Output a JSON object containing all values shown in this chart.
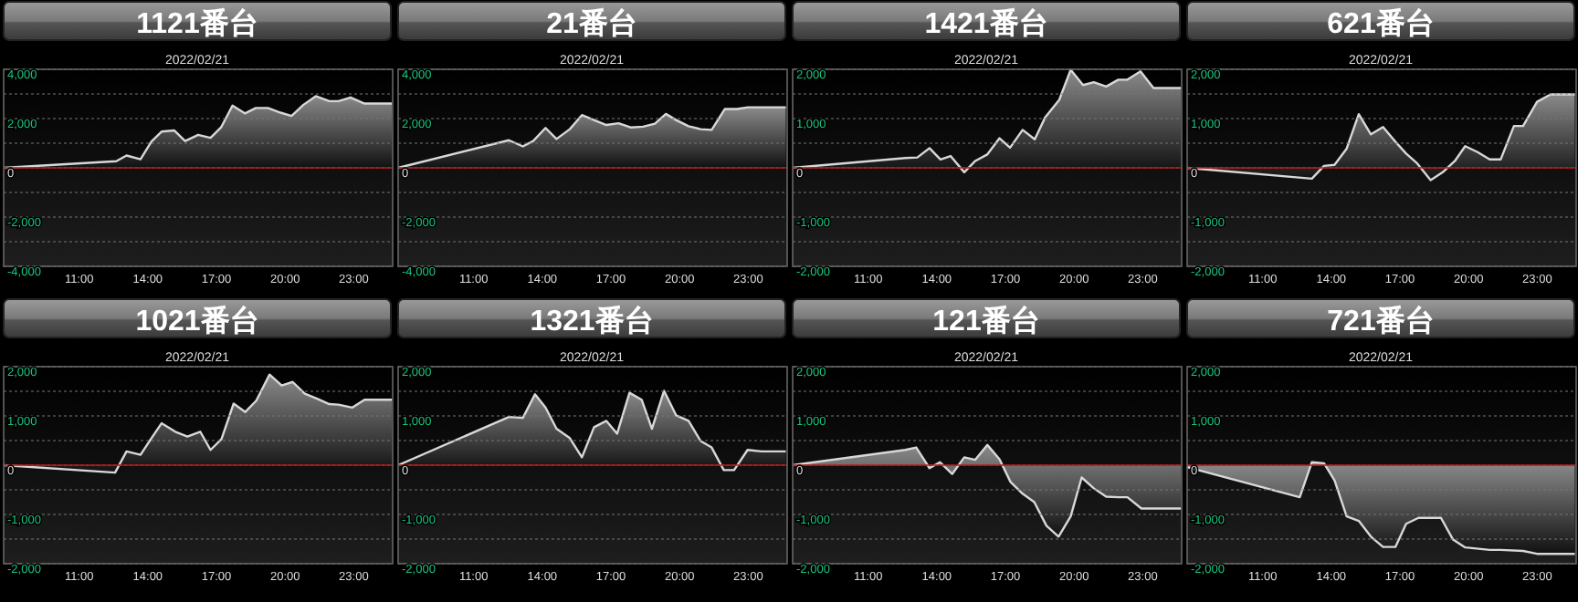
{
  "chart_data": [
    {
      "type": "area",
      "title": "1121番台",
      "subtitle": "2022/02/21",
      "color": "#d8d8d8",
      "grid": "y",
      "xlim": [
        7.7,
        24.7
      ],
      "ylim": [
        -4000,
        4000
      ],
      "xticks": [
        {
          "value": 11,
          "label": "11:00"
        },
        {
          "value": 14,
          "label": "14:00"
        },
        {
          "value": 17,
          "label": "17:00"
        },
        {
          "value": 20,
          "label": "20:00"
        },
        {
          "value": 23,
          "label": "23:00"
        }
      ],
      "yticks": [
        {
          "value": -4000,
          "label": "-4,000"
        },
        {
          "value": -3000,
          "label": null
        },
        {
          "value": -2000,
          "label": "-2,000"
        },
        {
          "value": -1000,
          "label": null
        },
        {
          "value": 0,
          "label": "0"
        },
        {
          "value": 1000,
          "label": null
        },
        {
          "value": 2000,
          "label": "2,000"
        },
        {
          "value": 3000,
          "label": null
        },
        {
          "value": 4000,
          "label": "4,000"
        }
      ],
      "ref_lines": [
        {
          "axis": "y",
          "value": 0,
          "color": "#c01818"
        }
      ],
      "x": [
        7.7,
        12.62,
        13.07,
        13.68,
        14.16,
        14.6,
        15.15,
        15.63,
        16.2,
        16.74,
        17.2,
        17.7,
        18.24,
        18.72,
        19.25,
        19.8,
        20.28,
        20.8,
        21.34,
        21.93,
        22.33,
        22.86,
        23.47,
        24.67
      ],
      "values": [
        0,
        270,
        500,
        350,
        1070,
        1470,
        1520,
        1090,
        1340,
        1220,
        1640,
        2530,
        2210,
        2430,
        2430,
        2240,
        2110,
        2560,
        2910,
        2710,
        2710,
        2860,
        2610,
        2610
      ]
    },
    {
      "type": "area",
      "title": "21番台",
      "subtitle": "2022/02/21",
      "color": "#d8d8d8",
      "grid": "y",
      "xlim": [
        7.7,
        24.7
      ],
      "ylim": [
        -4000,
        4000
      ],
      "xticks": [
        {
          "value": 11,
          "label": "11:00"
        },
        {
          "value": 14,
          "label": "14:00"
        },
        {
          "value": 17,
          "label": "17:00"
        },
        {
          "value": 20,
          "label": "20:00"
        },
        {
          "value": 23,
          "label": "23:00"
        }
      ],
      "yticks": [
        {
          "value": -4000,
          "label": "-4,000"
        },
        {
          "value": -3000,
          "label": null
        },
        {
          "value": -2000,
          "label": "-2,000"
        },
        {
          "value": -1000,
          "label": null
        },
        {
          "value": 0,
          "label": "0"
        },
        {
          "value": 1000,
          "label": null
        },
        {
          "value": 2000,
          "label": "2,000"
        },
        {
          "value": 3000,
          "label": null
        },
        {
          "value": 4000,
          "label": "4,000"
        }
      ],
      "ref_lines": [
        {
          "axis": "y",
          "value": 0,
          "color": "#c01818"
        }
      ],
      "x": [
        7.7,
        12.54,
        13.15,
        13.6,
        14.14,
        14.62,
        15.2,
        15.73,
        16.26,
        16.8,
        17.33,
        17.86,
        18.4,
        18.92,
        19.4,
        19.85,
        20.39,
        20.92,
        21.4,
        21.98,
        22.51,
        22.99,
        24.64
      ],
      "values": [
        0,
        1120,
        870,
        1090,
        1620,
        1170,
        1570,
        2140,
        1940,
        1740,
        1810,
        1640,
        1670,
        1790,
        2190,
        1940,
        1690,
        1570,
        1540,
        2390,
        2390,
        2460,
        2460
      ]
    },
    {
      "type": "area",
      "title": "1421番台",
      "subtitle": "2022/02/21",
      "color": "#d8d8d8",
      "grid": "y",
      "xlim": [
        7.7,
        24.7
      ],
      "ylim": [
        -2000,
        2000
      ],
      "xticks": [
        {
          "value": 11,
          "label": "11:00"
        },
        {
          "value": 14,
          "label": "14:00"
        },
        {
          "value": 17,
          "label": "17:00"
        },
        {
          "value": 20,
          "label": "20:00"
        },
        {
          "value": 23,
          "label": "23:00"
        }
      ],
      "yticks": [
        {
          "value": -2000,
          "label": "-2,000"
        },
        {
          "value": -1500,
          "label": null
        },
        {
          "value": -1000,
          "label": "-1,000"
        },
        {
          "value": -500,
          "label": null
        },
        {
          "value": 0,
          "label": "0"
        },
        {
          "value": 500,
          "label": null
        },
        {
          "value": 1000,
          "label": "1,000"
        },
        {
          "value": 1500,
          "label": null
        },
        {
          "value": 2000,
          "label": "2,000"
        }
      ],
      "ref_lines": [
        {
          "axis": "y",
          "value": 0,
          "color": "#c01818"
        }
      ],
      "x": [
        7.7,
        12.62,
        13.15,
        13.68,
        14.16,
        14.6,
        15.2,
        15.68,
        16.2,
        16.74,
        17.2,
        17.75,
        18.28,
        18.74,
        19.35,
        19.85,
        20.39,
        20.86,
        21.4,
        21.93,
        22.33,
        22.9,
        23.47,
        24.67
      ],
      "values": [
        0,
        200,
        210,
        400,
        170,
        240,
        -90,
        140,
        270,
        600,
        410,
        770,
        580,
        1030,
        1380,
        1990,
        1680,
        1740,
        1650,
        1790,
        1790,
        1960,
        1620,
        1620
      ]
    },
    {
      "type": "area",
      "title": "621番台",
      "subtitle": "2022/02/21",
      "color": "#d8d8d8",
      "grid": "y",
      "xlim": [
        7.7,
        24.7
      ],
      "ylim": [
        -2000,
        2000
      ],
      "xticks": [
        {
          "value": 11,
          "label": "11:00"
        },
        {
          "value": 14,
          "label": "14:00"
        },
        {
          "value": 17,
          "label": "17:00"
        },
        {
          "value": 20,
          "label": "20:00"
        },
        {
          "value": 23,
          "label": "23:00"
        }
      ],
      "yticks": [
        {
          "value": -2000,
          "label": "-2,000"
        },
        {
          "value": -1500,
          "label": null
        },
        {
          "value": -1000,
          "label": "-1,000"
        },
        {
          "value": -500,
          "label": null
        },
        {
          "value": 0,
          "label": "0"
        },
        {
          "value": 500,
          "label": null
        },
        {
          "value": 1000,
          "label": "1,000"
        },
        {
          "value": 1500,
          "label": null
        },
        {
          "value": 2000,
          "label": "2,000"
        }
      ],
      "ref_lines": [
        {
          "axis": "y",
          "value": 0,
          "color": "#c01818"
        }
      ],
      "x": [
        7.7,
        13.15,
        13.68,
        14.14,
        14.67,
        15.2,
        15.73,
        16.26,
        16.8,
        17.27,
        17.73,
        18.34,
        18.87,
        19.4,
        19.85,
        20.39,
        20.92,
        21.4,
        21.98,
        22.38,
        22.99,
        23.58,
        24.64
      ],
      "values": [
        0,
        -220,
        40,
        60,
        390,
        1090,
        680,
        830,
        530,
        290,
        100,
        -250,
        -90,
        140,
        440,
        320,
        170,
        170,
        850,
        850,
        1340,
        1490,
        1490
      ]
    },
    {
      "type": "area",
      "title": "1021番台",
      "subtitle": "2022/02/21",
      "color": "#d8d8d8",
      "grid": "y",
      "xlim": [
        7.7,
        24.7
      ],
      "ylim": [
        -2000,
        2000
      ],
      "xticks": [
        {
          "value": 11,
          "label": "11:00"
        },
        {
          "value": 14,
          "label": "14:00"
        },
        {
          "value": 17,
          "label": "17:00"
        },
        {
          "value": 20,
          "label": "20:00"
        },
        {
          "value": 23,
          "label": "23:00"
        }
      ],
      "yticks": [
        {
          "value": -2000,
          "label": "-2,000"
        },
        {
          "value": -1500,
          "label": null
        },
        {
          "value": -1000,
          "label": "-1,000"
        },
        {
          "value": -500,
          "label": null
        },
        {
          "value": 0,
          "label": "0"
        },
        {
          "value": 500,
          "label": null
        },
        {
          "value": 1000,
          "label": "1,000"
        },
        {
          "value": 1500,
          "label": null
        },
        {
          "value": 2000,
          "label": "2,000"
        }
      ],
      "ref_lines": [
        {
          "axis": "y",
          "value": 0,
          "color": "#c01818"
        }
      ],
      "x": [
        7.7,
        12.57,
        13.07,
        13.68,
        14.16,
        14.6,
        15.2,
        15.73,
        16.29,
        16.74,
        17.22,
        17.75,
        18.26,
        18.74,
        19.32,
        19.85,
        20.33,
        20.86,
        21.4,
        21.93,
        22.33,
        22.94,
        23.47,
        24.67
      ],
      "values": [
        0,
        -150,
        280,
        210,
        550,
        850,
        680,
        580,
        680,
        310,
        530,
        1250,
        1080,
        1310,
        1840,
        1620,
        1690,
        1450,
        1350,
        1240,
        1230,
        1170,
        1330,
        1330
      ]
    },
    {
      "type": "area",
      "title": "1321番台",
      "subtitle": "2022/02/21",
      "color": "#d8d8d8",
      "grid": "y",
      "xlim": [
        7.7,
        24.7
      ],
      "ylim": [
        -2000,
        2000
      ],
      "xticks": [
        {
          "value": 11,
          "label": "11:00"
        },
        {
          "value": 14,
          "label": "14:00"
        },
        {
          "value": 17,
          "label": "17:00"
        },
        {
          "value": 20,
          "label": "20:00"
        },
        {
          "value": 23,
          "label": "23:00"
        }
      ],
      "yticks": [
        {
          "value": -2000,
          "label": "-2,000"
        },
        {
          "value": -1500,
          "label": null
        },
        {
          "value": -1000,
          "label": "-1,000"
        },
        {
          "value": -500,
          "label": null
        },
        {
          "value": 0,
          "label": "0"
        },
        {
          "value": 500,
          "label": null
        },
        {
          "value": 1000,
          "label": "1,000"
        },
        {
          "value": 1500,
          "label": null
        },
        {
          "value": 2000,
          "label": "2,000"
        }
      ],
      "ref_lines": [
        {
          "axis": "y",
          "value": 0,
          "color": "#c01818"
        }
      ],
      "x": [
        7.7,
        12.54,
        13.15,
        13.68,
        14.14,
        14.62,
        15.2,
        15.73,
        16.26,
        16.8,
        17.27,
        17.81,
        18.34,
        18.79,
        19.32,
        19.85,
        20.39,
        20.92,
        21.4,
        21.93,
        22.38,
        22.97,
        23.58,
        24.64
      ],
      "values": [
        0,
        980,
        960,
        1440,
        1170,
        740,
        550,
        160,
        770,
        900,
        640,
        1470,
        1330,
        740,
        1510,
        1010,
        900,
        490,
        360,
        -100,
        -100,
        310,
        280,
        280
      ]
    },
    {
      "type": "area",
      "title": "121番台",
      "subtitle": "2022/02/21",
      "color": "#d8d8d8",
      "grid": "y",
      "xlim": [
        7.7,
        24.7
      ],
      "ylim": [
        -2000,
        2000
      ],
      "xticks": [
        {
          "value": 11,
          "label": "11:00"
        },
        {
          "value": 14,
          "label": "14:00"
        },
        {
          "value": 17,
          "label": "17:00"
        },
        {
          "value": 20,
          "label": "20:00"
        },
        {
          "value": 23,
          "label": "23:00"
        }
      ],
      "yticks": [
        {
          "value": -2000,
          "label": "-2,000"
        },
        {
          "value": -1500,
          "label": null
        },
        {
          "value": -1000,
          "label": "-1,000"
        },
        {
          "value": -500,
          "label": null
        },
        {
          "value": 0,
          "label": "0"
        },
        {
          "value": 500,
          "label": null
        },
        {
          "value": 1000,
          "label": "1,000"
        },
        {
          "value": 1500,
          "label": null
        },
        {
          "value": 2000,
          "label": "2,000"
        }
      ],
      "ref_lines": [
        {
          "axis": "y",
          "value": 0,
          "color": "#c01818"
        }
      ],
      "x": [
        7.7,
        12.62,
        13.1,
        13.68,
        14.14,
        14.67,
        15.2,
        15.68,
        16.21,
        16.74,
        17.22,
        17.75,
        18.26,
        18.79,
        19.32,
        19.85,
        20.33,
        20.86,
        21.4,
        21.93,
        22.33,
        22.94,
        23.47,
        24.67
      ],
      "values": [
        0,
        310,
        360,
        -60,
        60,
        -180,
        160,
        110,
        410,
        120,
        -340,
        -580,
        -750,
        -1230,
        -1450,
        -1040,
        -250,
        -470,
        -640,
        -650,
        -650,
        -880,
        -880,
        -880
      ]
    },
    {
      "type": "area",
      "title": "721番台",
      "subtitle": "2022/02/21",
      "color": "#d8d8d8",
      "grid": "y",
      "xlim": [
        7.7,
        24.7
      ],
      "ylim": [
        -2000,
        2000
      ],
      "xticks": [
        {
          "value": 11,
          "label": "11:00"
        },
        {
          "value": 14,
          "label": "14:00"
        },
        {
          "value": 17,
          "label": "17:00"
        },
        {
          "value": 20,
          "label": "20:00"
        },
        {
          "value": 23,
          "label": "23:00"
        }
      ],
      "yticks": [
        {
          "value": -2000,
          "label": "-2,000"
        },
        {
          "value": -1500,
          "label": null
        },
        {
          "value": -1000,
          "label": "-1,000"
        },
        {
          "value": -500,
          "label": null
        },
        {
          "value": 0,
          "label": "0"
        },
        {
          "value": 500,
          "label": null
        },
        {
          "value": 1000,
          "label": "1,000"
        },
        {
          "value": 1500,
          "label": null
        },
        {
          "value": 2000,
          "label": "2,000"
        }
      ],
      "ref_lines": [
        {
          "axis": "y",
          "value": 0,
          "color": "#c01818"
        }
      ],
      "x": [
        7.7,
        12.62,
        13.15,
        13.68,
        14.14,
        14.67,
        15.2,
        15.73,
        16.26,
        16.8,
        17.27,
        17.81,
        18.34,
        18.79,
        19.32,
        19.85,
        20.92,
        21.4,
        22.38,
        22.99,
        24.64
      ],
      "values": [
        -40,
        -650,
        60,
        40,
        -310,
        -1040,
        -1130,
        -1450,
        -1660,
        -1660,
        -1190,
        -1070,
        -1070,
        -1070,
        -1510,
        -1670,
        -1720,
        -1720,
        -1740,
        -1800,
        -1800
      ]
    }
  ]
}
